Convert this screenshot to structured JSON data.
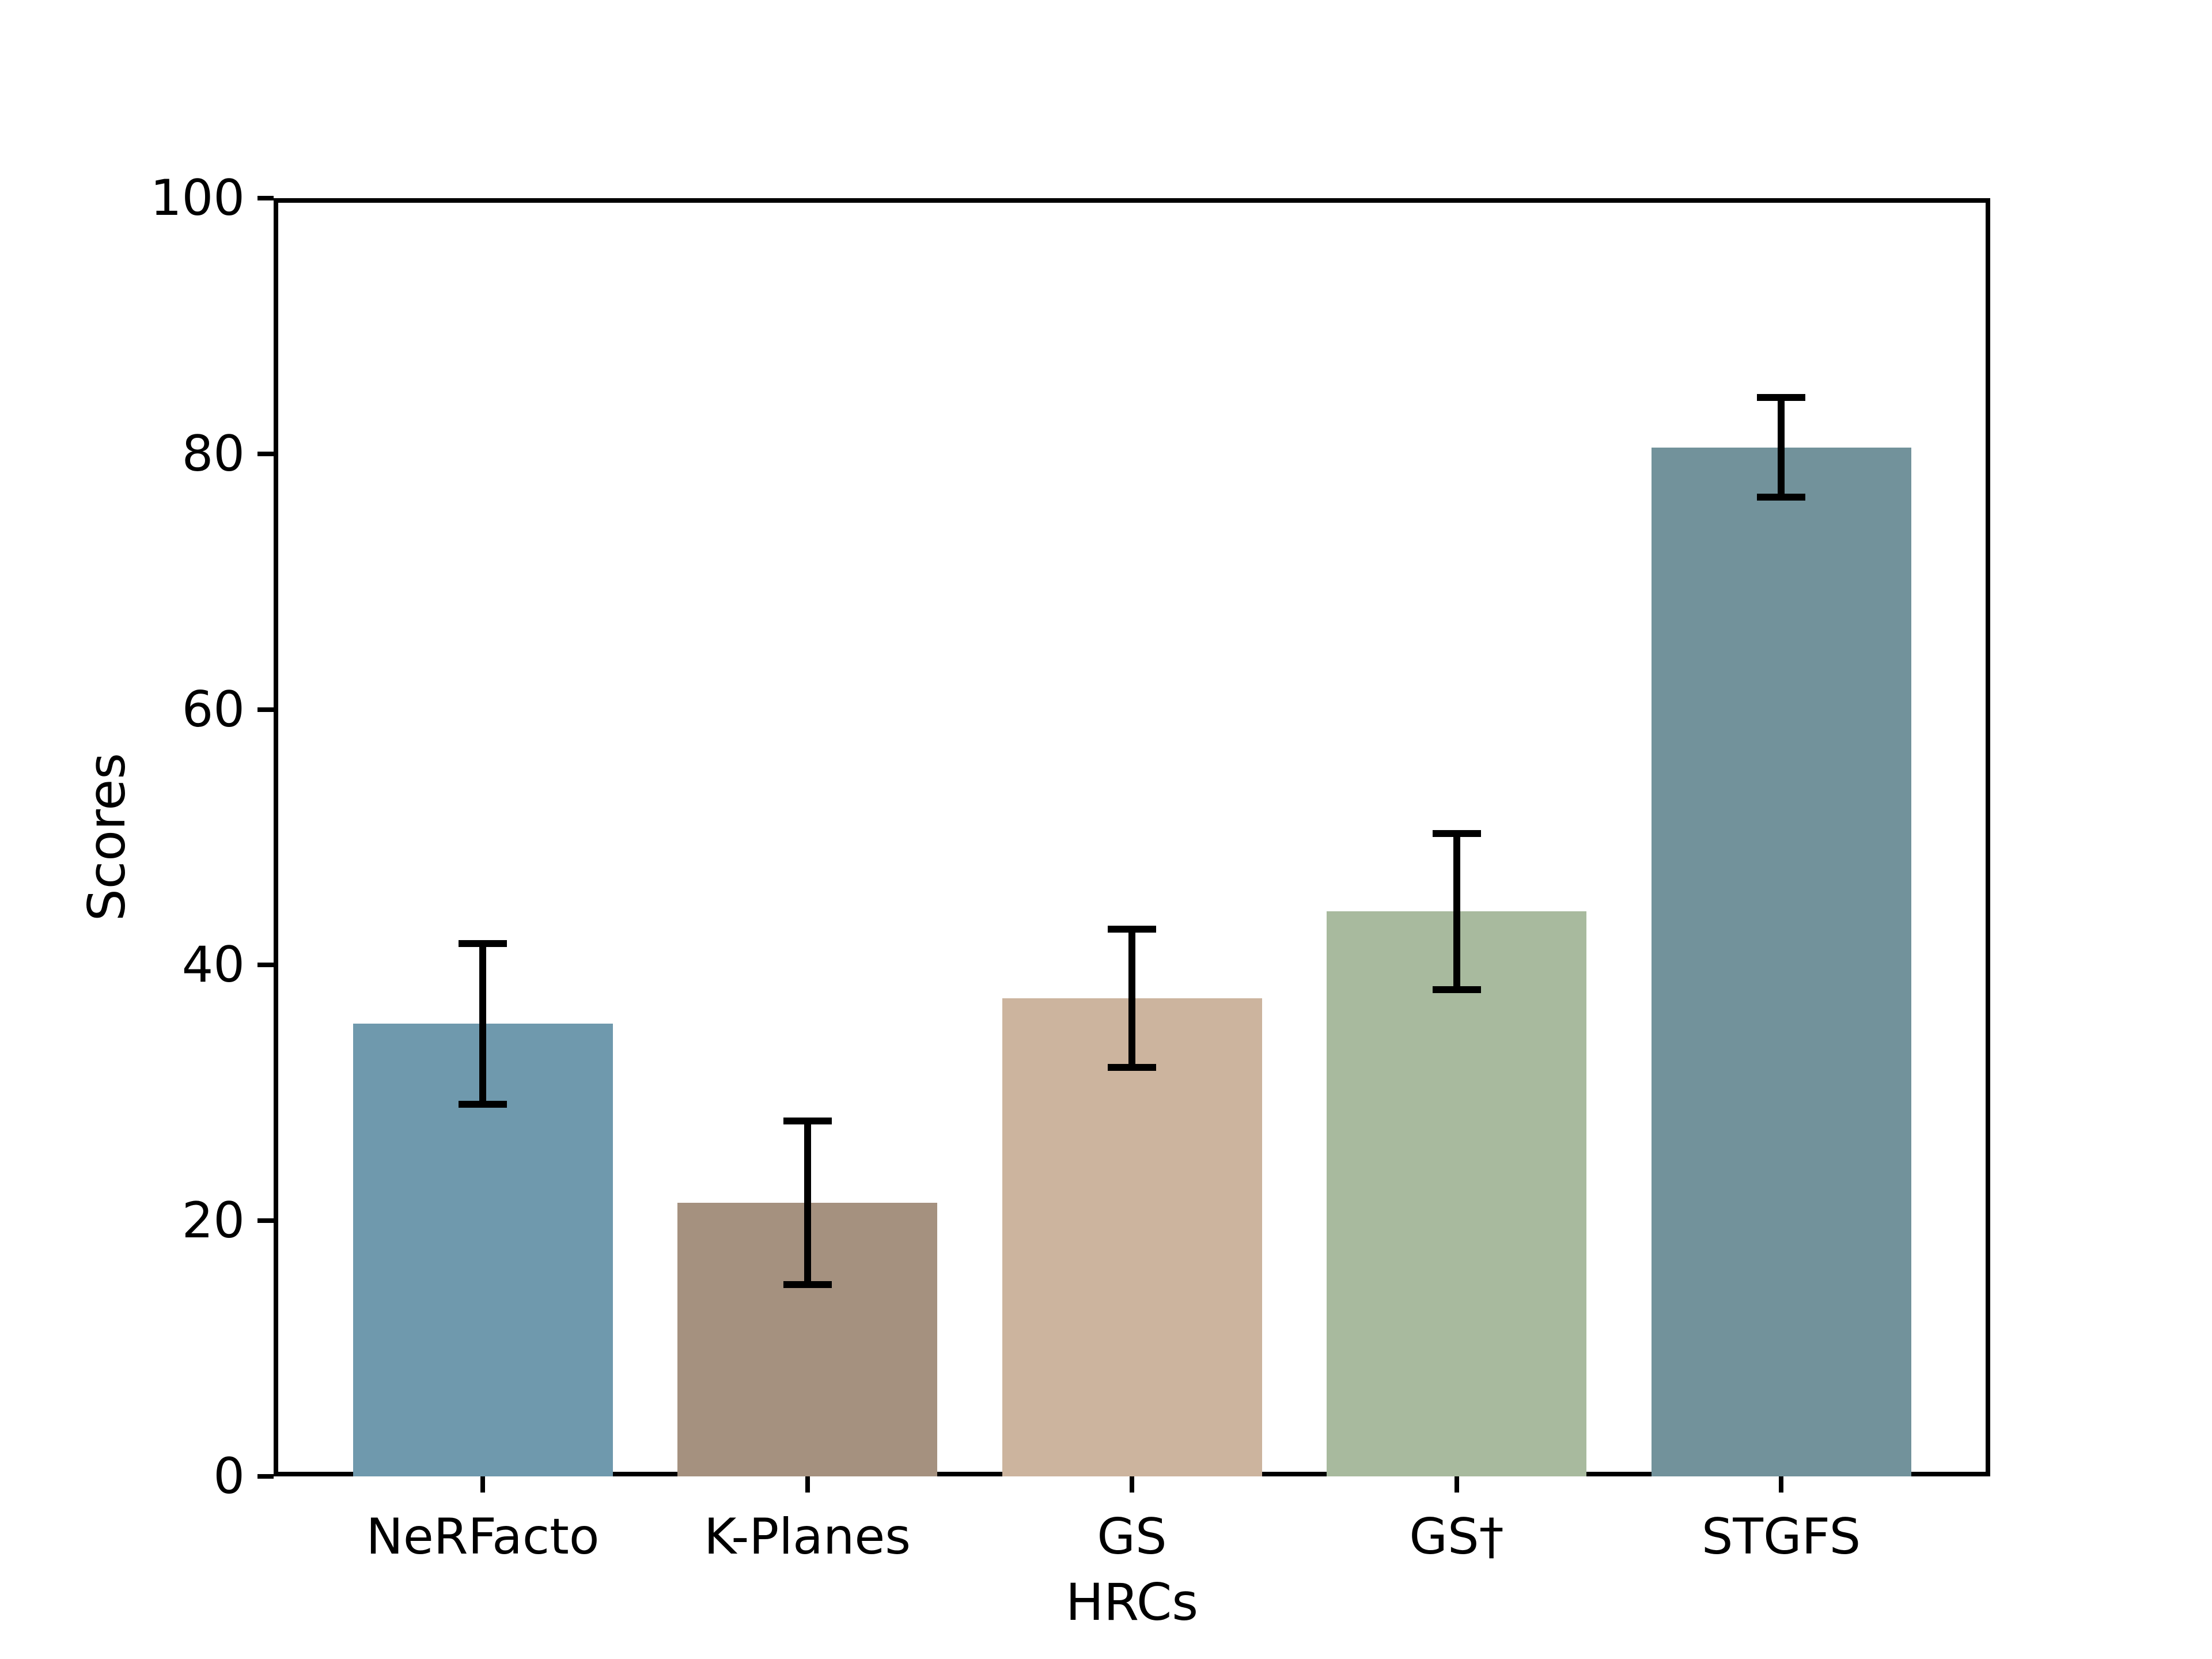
{
  "figure": {
    "background_color": "#ffffff",
    "text_color": "#000000"
  },
  "chart_data": {
    "type": "bar",
    "title": "",
    "xlabel": "HRCs",
    "ylabel": "Scores",
    "categories": [
      "NeRFacto",
      "K-Planes",
      "GS",
      "GS†",
      "STGFS"
    ],
    "values": [
      35.4,
      21.4,
      37.4,
      44.2,
      80.5
    ],
    "error_bars": [
      6.3,
      6.4,
      5.4,
      6.1,
      3.9
    ],
    "error_bar_ranges": [
      {
        "low": 29.1,
        "high": 41.7
      },
      {
        "low": 15.0,
        "high": 27.8
      },
      {
        "low": 32.0,
        "high": 42.8
      },
      {
        "low": 38.1,
        "high": 50.3
      },
      {
        "low": 76.6,
        "high": 84.4
      }
    ],
    "bar_colors": [
      "#6f99ad",
      "#a5917f",
      "#ccb49e",
      "#a8ba9e",
      "#72929b"
    ],
    "error_color": "#000000",
    "ylim": [
      0,
      100
    ],
    "yticks": [
      0,
      20,
      40,
      60,
      80,
      100
    ],
    "grid": false,
    "legend": null
  }
}
